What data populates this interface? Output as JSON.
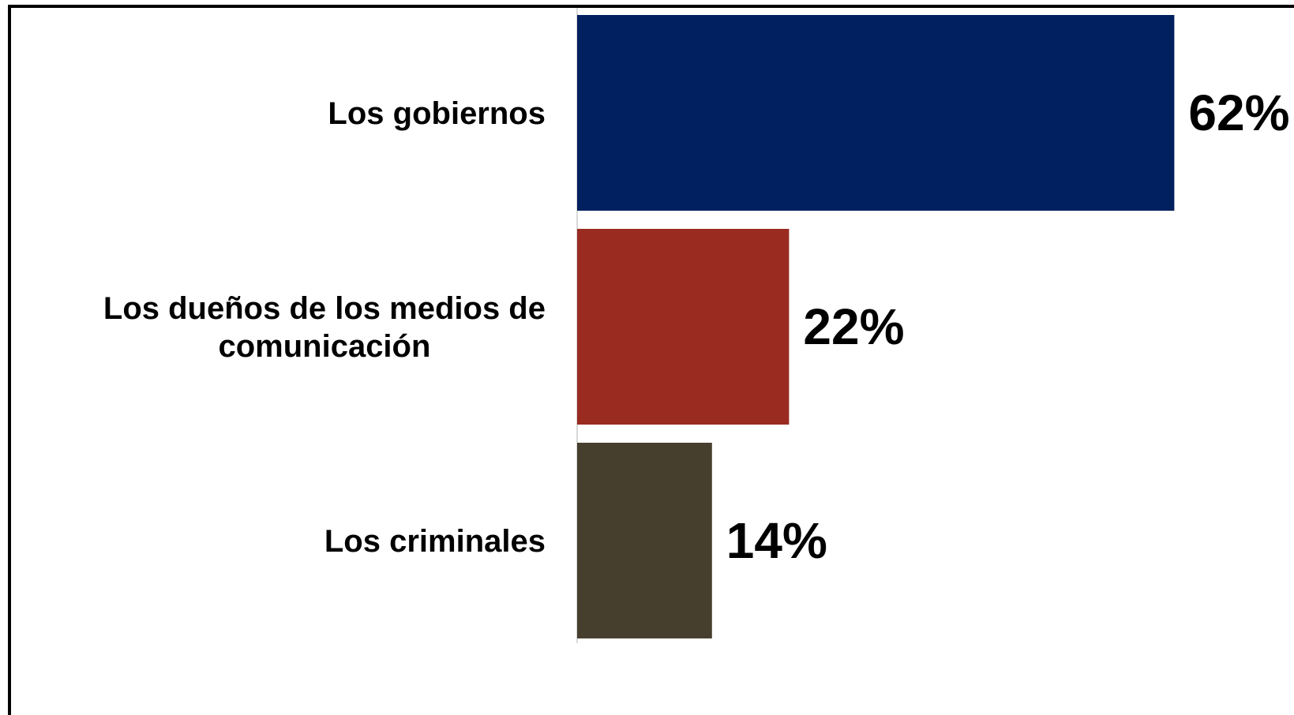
{
  "chart_data": {
    "type": "bar",
    "orientation": "horizontal",
    "categories": [
      [
        "Los gobiernos"
      ],
      [
        "Los dueños de los medios de",
        "comunicación"
      ],
      [
        "Los criminales"
      ]
    ],
    "values": [
      62,
      22,
      14
    ],
    "value_labels": [
      "62%",
      "22%",
      "14%"
    ],
    "colors": [
      "#00205f",
      "#992b21",
      "#473f2e"
    ],
    "xlim": [
      0,
      100
    ],
    "grid": false,
    "legend": "none"
  }
}
